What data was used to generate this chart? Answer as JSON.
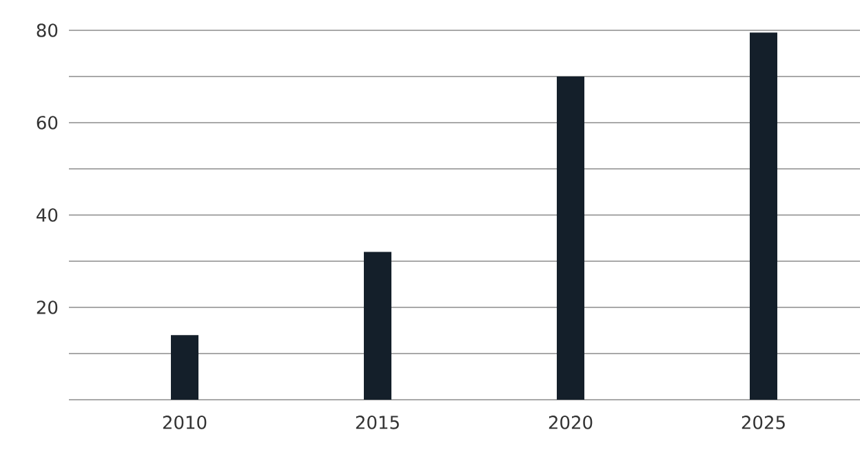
{
  "chart_data": {
    "type": "bar",
    "categories": [
      "2010",
      "2015",
      "2020",
      "2025"
    ],
    "values": [
      14,
      32,
      70,
      79.5
    ],
    "color": "#141f2a",
    "ylim": [
      0,
      80
    ],
    "yticks": [
      {
        "value": 0,
        "label": null
      },
      {
        "value": 10,
        "label": null
      },
      20,
      {
        "value": 30,
        "label": null
      },
      40,
      {
        "value": 50,
        "label": null
      },
      60,
      {
        "value": 70,
        "label": null
      },
      80
    ],
    "grid": "y"
  }
}
